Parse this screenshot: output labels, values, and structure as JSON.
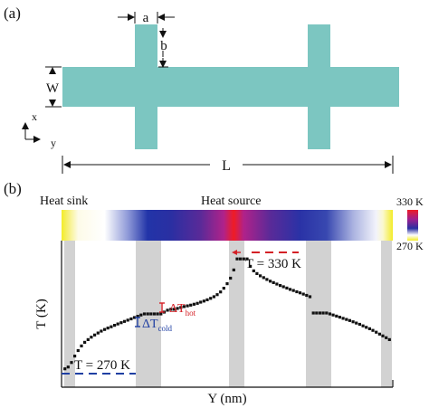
{
  "panel_a": {
    "label": "(a)",
    "dim_a": "a",
    "dim_b": "b",
    "dim_W": "W",
    "dim_L": "L",
    "axis_x": "x",
    "axis_y": "y",
    "structure_color": "#7cc6c1"
  },
  "panel_b": {
    "label": "(b)",
    "heat_sink_label": "Heat sink",
    "heat_source_label": "Heat source",
    "colorbar_max": "330 K",
    "colorbar_min": "270 K",
    "hot_temp_label": "T = 330 K",
    "cold_temp_label": "T = 270 K",
    "delta_cold_label": "ΔT",
    "delta_cold_sub": "cold",
    "delta_hot_label": "ΔT",
    "delta_hot_sub": "hot",
    "colors": {
      "cold": "#f5ee2a",
      "blue": "#1a2fa6",
      "hot": "#ee1c24",
      "gray_band": "#d2d2d2",
      "cold_marker": "#1f3fa3",
      "hot_marker": "#d42026"
    }
  },
  "chart_data": {
    "type": "scatter",
    "title": "",
    "xlabel": "Y (nm)",
    "ylabel": "T (K)",
    "xlim": [
      0,
      100
    ],
    "ylim": [
      260,
      340
    ],
    "grid": false,
    "points_x": [
      1,
      2,
      3,
      4,
      5,
      6,
      7,
      8,
      9,
      10,
      11,
      12,
      13,
      14,
      15,
      16,
      17,
      18,
      19,
      20,
      21,
      22,
      23,
      24,
      25,
      26,
      27,
      28,
      29,
      30,
      31,
      32,
      33,
      34,
      35,
      36,
      37,
      38,
      39,
      40,
      41,
      42,
      43,
      44,
      45,
      46,
      47,
      48,
      49,
      50,
      51,
      52,
      53,
      54,
      55,
      56,
      57,
      58,
      59,
      60,
      61,
      62,
      63,
      64,
      65,
      66,
      67,
      68,
      69,
      70,
      71,
      72,
      73,
      74,
      75,
      76,
      77,
      78,
      79,
      80,
      81,
      82,
      83,
      84,
      85,
      86,
      87,
      88,
      89,
      90,
      91,
      92,
      93,
      94,
      95,
      96,
      97,
      98,
      99
    ],
    "points_y": [
      270,
      271,
      273.5,
      277,
      280,
      282.5,
      284.5,
      286,
      287.3,
      288.5,
      289.6,
      290.6,
      291.5,
      292.3,
      293,
      293.8,
      294.5,
      295.2,
      295.9,
      296.6,
      297.3,
      298,
      298.7,
      299.4,
      300,
      300,
      300,
      300,
      300,
      300,
      301,
      302,
      302.5,
      302.5,
      303,
      303.5,
      304,
      304.4,
      304.8,
      305.3,
      305.8,
      306.4,
      307,
      307.7,
      308.5,
      309.4,
      310.5,
      312,
      314,
      316.5,
      319.5,
      324,
      330,
      330,
      330,
      330,
      326,
      323.5,
      322,
      320.8,
      319.8,
      318.8,
      317.9,
      317.1,
      316.3,
      315.5,
      314.8,
      314.1,
      313.4,
      312.8,
      312.1,
      311.5,
      310.8,
      310.1,
      309.4,
      300.5,
      300.5,
      300.5,
      300.5,
      300.5,
      300,
      299.4,
      298.8,
      298.2,
      297.6,
      297,
      296.4,
      295.7,
      295,
      294.3,
      293.5,
      292.7,
      291.9,
      291,
      290,
      289,
      288,
      287,
      286
    ]
  }
}
